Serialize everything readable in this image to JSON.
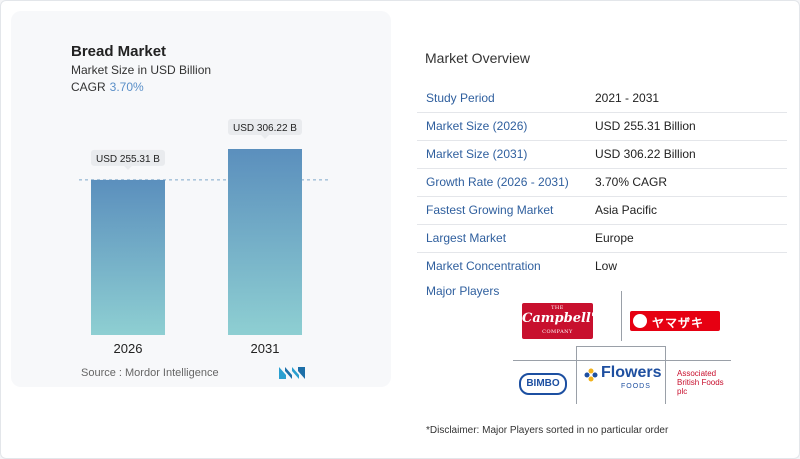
{
  "chart": {
    "title": "Bread Market",
    "subtitle": "Market Size in USD Billion",
    "cagr_label": "CAGR",
    "cagr_value": "3.70%",
    "source": "Source :  Mordor Intelligence"
  },
  "chart_data": {
    "type": "bar",
    "categories": [
      "2026",
      "2031"
    ],
    "values": [
      255.31,
      306.22
    ],
    "data_labels": [
      "USD 255.31 B",
      "USD 306.22 B"
    ],
    "title": "Bread Market",
    "subtitle": "Market Size in USD Billion",
    "xlabel": "",
    "ylabel": "",
    "grid": false,
    "reference_line": 255.31,
    "colors": {
      "top": "#5b8fbd",
      "bottom": "#8ecfd2"
    }
  },
  "overview": {
    "title": "Market Overview",
    "rows": [
      {
        "label": "Study Period",
        "value": "2021 - 2031"
      },
      {
        "label": "Market Size (2026)",
        "value": "USD 255.31 Billion"
      },
      {
        "label": "Market Size (2031)",
        "value": "USD 306.22 Billion"
      },
      {
        "label": "Growth Rate (2026 - 2031)",
        "value": "3.70% CAGR"
      },
      {
        "label": "Fastest Growing Market",
        "value": "Asia Pacific"
      },
      {
        "label": "Largest Market",
        "value": "Europe"
      },
      {
        "label": "Market Concentration",
        "value": "Low"
      }
    ]
  },
  "players": {
    "title": "Major Players",
    "logos": {
      "campbell_small": "THE",
      "campbell_big": "Campbell's",
      "campbell_sub": "COMPANY",
      "yamazaki": "ヤマザキ",
      "bimbo": "BIMBO",
      "flowers": "Flowers",
      "flowers_sub": "FOODS",
      "abf_1": "Associated",
      "abf_2": "British Foods",
      "abf_3": "plc"
    }
  },
  "disclaimer": "*Disclaimer: Major Players sorted in no particular order",
  "colors": {
    "label_blue": "#2f5f9e",
    "cagr_blue": "#5a8fc8"
  }
}
